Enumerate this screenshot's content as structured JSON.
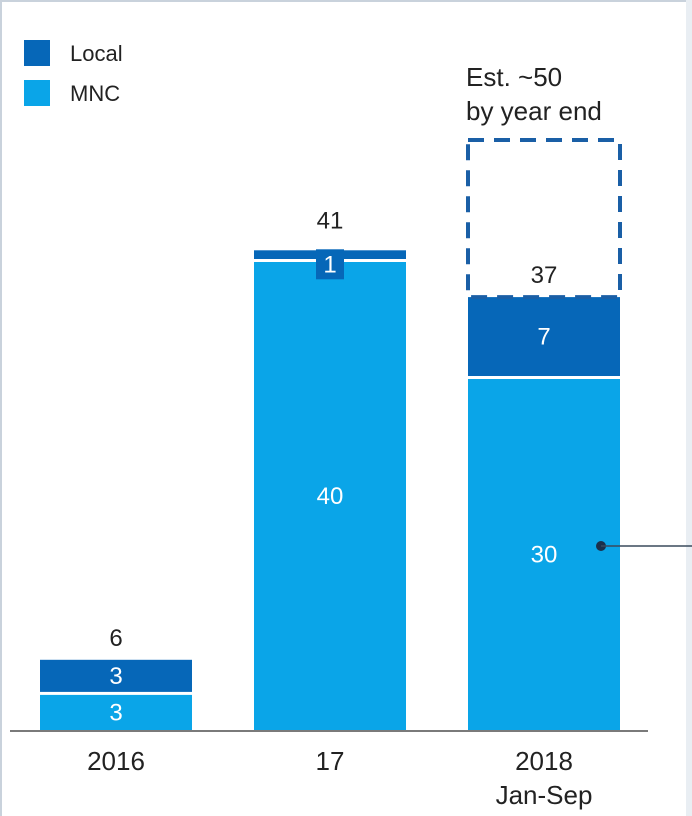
{
  "chart_data": {
    "type": "bar",
    "stacked": true,
    "categories": [
      "2016",
      "17",
      "2018\nJan-Sep"
    ],
    "series": [
      {
        "name": "MNC",
        "values": [
          3,
          40,
          30
        ],
        "color": "#0aa5e8"
      },
      {
        "name": "Local",
        "values": [
          3,
          1,
          7
        ],
        "color": "#0667b8"
      }
    ],
    "totals": [
      6,
      41,
      37
    ],
    "estimate": {
      "category": "2018\nJan-Sep",
      "value": 50,
      "label_lines": [
        "Est. ~50",
        "by year end"
      ]
    },
    "legend_position": "top-left",
    "grid": false,
    "ylim": [
      0,
      50
    ],
    "title": "",
    "xlabel": "",
    "ylabel": ""
  },
  "colors": {
    "mnc": "#0aa5e8",
    "local": "#0667b8",
    "text": "#222222",
    "estimate": "#1a5fa6"
  }
}
